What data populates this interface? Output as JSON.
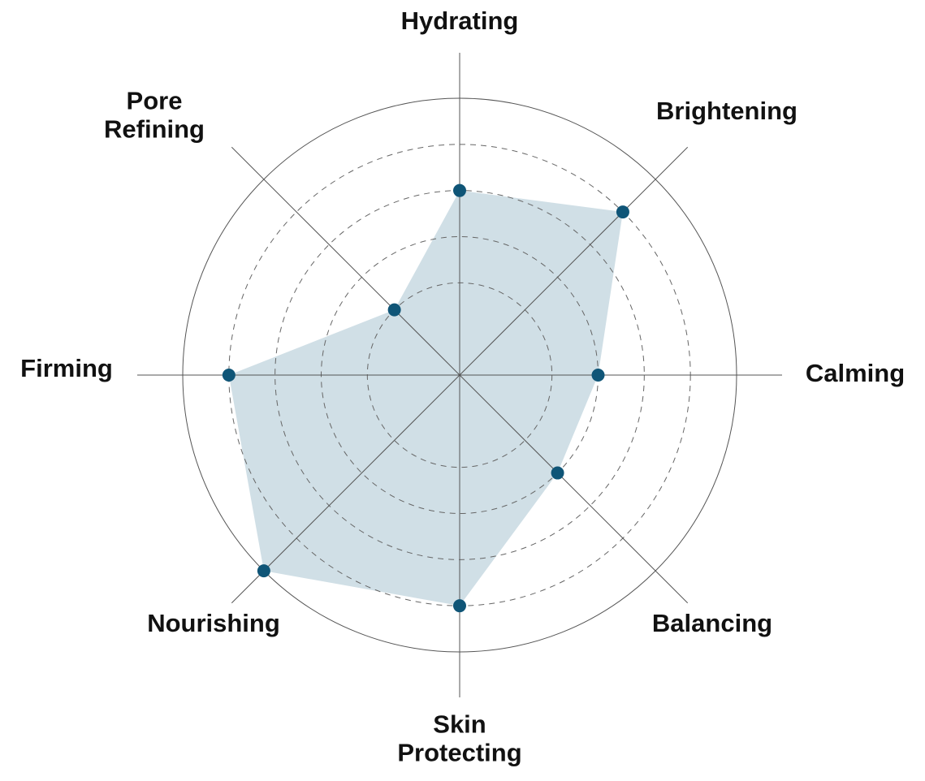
{
  "chart_data": {
    "type": "radar",
    "categories": [
      "Hydrating",
      "Brightening",
      "Calming",
      "Balancing",
      "Skin Protecting",
      "Nourishing",
      "Firming",
      "Pore Refining"
    ],
    "values": [
      4,
      5,
      3,
      3,
      5,
      6,
      5,
      2
    ],
    "color": "#0f5577",
    "fill": "#d0dfe6",
    "ylim": [
      0,
      6
    ],
    "yticks": [
      2,
      3,
      4,
      5
    ],
    "grid": true
  }
}
